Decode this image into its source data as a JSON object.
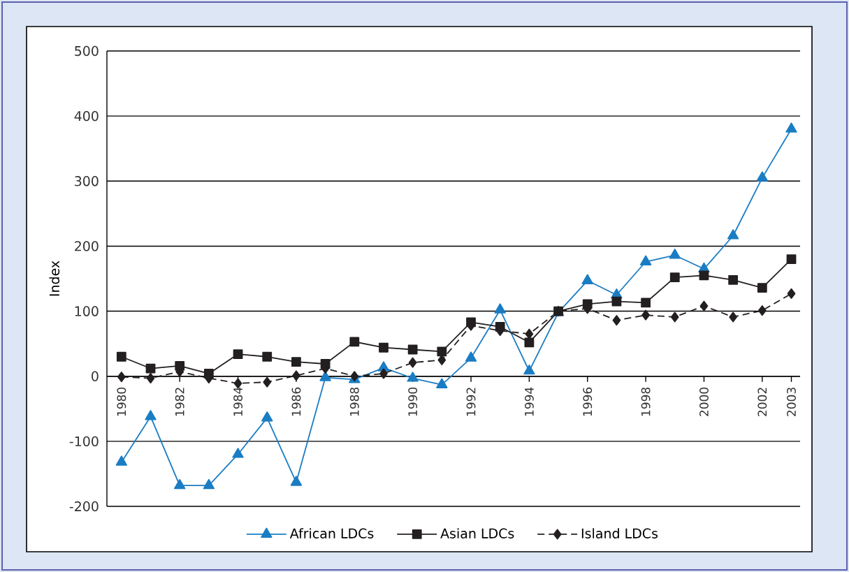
{
  "chart_data": {
    "type": "line",
    "ylabel": "Index",
    "x": [
      1980,
      1981,
      1982,
      1983,
      1984,
      1985,
      1986,
      1987,
      1988,
      1989,
      1990,
      1991,
      1992,
      1993,
      1994,
      1995,
      1996,
      1997,
      1998,
      1999,
      2000,
      2001,
      2002,
      2003
    ],
    "series": [
      {
        "name": "African LDCs",
        "color": "#1a7dc4",
        "marker": "triangle",
        "line_style": "solid",
        "values": [
          -132,
          -62,
          -168,
          -168,
          -120,
          -64,
          -163,
          -2,
          -5,
          13,
          -3,
          -13,
          28,
          102,
          8,
          98,
          147,
          125,
          176,
          186,
          165,
          216,
          305,
          380
        ]
      },
      {
        "name": "Asian LDCs",
        "color": "#231f20",
        "marker": "square",
        "line_style": "solid",
        "values": [
          30,
          12,
          16,
          4,
          34,
          30,
          22,
          19,
          53,
          44,
          41,
          38,
          83,
          76,
          52,
          100,
          111,
          115,
          113,
          152,
          155,
          148,
          136,
          180
        ]
      },
      {
        "name": "Island LDCs",
        "color": "#231f20",
        "marker": "diamond",
        "line_style": "dashed",
        "values": [
          -1,
          -3,
          7,
          -3,
          -11,
          -9,
          1,
          12,
          0,
          4,
          21,
          25,
          78,
          70,
          65,
          100,
          104,
          86,
          94,
          91,
          108,
          91,
          101,
          127
        ]
      }
    ],
    "xlim": [
      1979.5,
      2003.3
    ],
    "ylim": [
      -200,
      500
    ],
    "xticks": [
      1980,
      1982,
      1984,
      1986,
      1988,
      1990,
      1992,
      1994,
      1996,
      1998,
      2000,
      2002,
      2003
    ],
    "yticks": [
      -200,
      -100,
      0,
      100,
      200,
      300,
      400,
      500
    ],
    "grid": "y",
    "legend": "bottom"
  }
}
